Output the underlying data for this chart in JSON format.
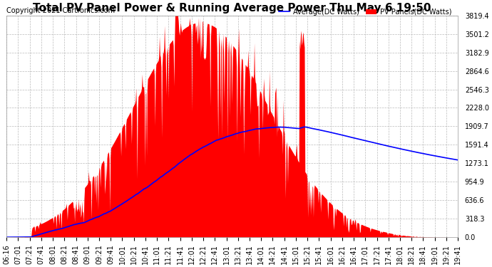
{
  "title": "Total PV Panel Power & Running Average Power Thu May 6 19:50",
  "copyright": "Copyright 2021 Cartronics.com",
  "legend_average": "Average(DC Watts)",
  "legend_pv": "PV Panels(DC Watts)",
  "legend_average_color": "blue",
  "legend_pv_color": "red",
  "ylabel_ticks": [
    0.0,
    318.3,
    636.6,
    954.9,
    1273.1,
    1591.4,
    1909.7,
    2228.0,
    2546.3,
    2864.6,
    3182.9,
    3501.2,
    3819.4
  ],
  "ymax": 3819.4,
  "ymin": 0.0,
  "background_color": "#ffffff",
  "plot_bg_color": "#ffffff",
  "grid_color": "#bbbbbb",
  "title_fontsize": 11,
  "copyright_fontsize": 7,
  "tick_fontsize": 7,
  "x_tick_labels": [
    "06:16",
    "07:01",
    "07:21",
    "07:41",
    "08:01",
    "08:21",
    "08:41",
    "09:01",
    "09:21",
    "09:41",
    "10:01",
    "10:21",
    "10:41",
    "11:01",
    "11:21",
    "11:41",
    "12:01",
    "12:21",
    "12:41",
    "13:01",
    "13:21",
    "13:41",
    "14:01",
    "14:21",
    "14:41",
    "15:01",
    "15:21",
    "15:41",
    "16:01",
    "16:21",
    "16:41",
    "17:01",
    "17:21",
    "17:41",
    "18:01",
    "18:21",
    "18:41",
    "19:01",
    "19:21",
    "19:41"
  ],
  "fill_color": "#ff0000",
  "fill_alpha": 1.0,
  "line_color": "blue",
  "line_width": 1.2
}
